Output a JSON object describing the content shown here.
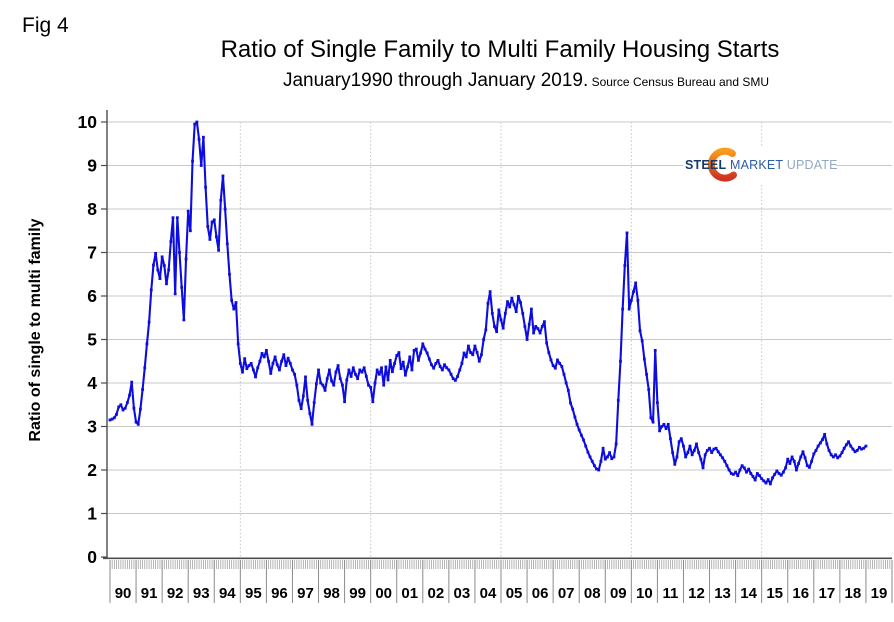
{
  "figure": {
    "fig_label": "Fig 4"
  },
  "header": {
    "title": "Ratio of Single Family to Multi Family Housing Starts",
    "subtitle": "January1990 through January 2019.",
    "source_note": " Source Census Bureau and SMU"
  },
  "logo": {
    "word1": "STEEL",
    "word2": "MARKET",
    "word3": "UPDATE",
    "colors": {
      "word1": "#153a6e",
      "word2": "#2b5ca9",
      "word3": "#93a7c6",
      "arc_top": "#f89c1b",
      "arc_bottom": "#cf3322"
    }
  },
  "chart_data": {
    "type": "line",
    "title": "Ratio of Single Family to Multi Family Housing Starts",
    "subtitle": "January1990 through January 2019.",
    "source": "Source Census Bureau and SMU",
    "xlabel": "",
    "ylabel": "Ratio of single to multi family",
    "ylim": [
      0,
      10
    ],
    "yticks": [
      0,
      1,
      2,
      3,
      4,
      5,
      6,
      7,
      8,
      9,
      10
    ],
    "x_range": [
      "Jan 1990",
      "Jan 2019"
    ],
    "frequency": "monthly",
    "x_year_labels": [
      "90",
      "91",
      "92",
      "93",
      "94",
      "95",
      "96",
      "97",
      "98",
      "99",
      "00",
      "01",
      "02",
      "03",
      "04",
      "05",
      "06",
      "07",
      "08",
      "09",
      "10",
      "11",
      "12",
      "13",
      "14",
      "15",
      "16",
      "17",
      "18",
      "19"
    ],
    "grid": {
      "horizontal": true,
      "vertical_dotted_every_years": 5,
      "legend": "none"
    },
    "colors": {
      "line": "#0d0de0",
      "grid": "#c9c9c9",
      "dotted_grid": "#c4c4c4",
      "axis": "#4d4d4d",
      "month_tick": "#a3a3a3",
      "year_separator": "#8a8a8a"
    },
    "series": [
      {
        "name": "Single family to multi family housing starts ratio",
        "start": "1990-01",
        "end": "2019-01",
        "values": [
          3.15,
          3.17,
          3.2,
          3.28,
          3.45,
          3.5,
          3.38,
          3.42,
          3.55,
          3.72,
          4.02,
          3.42,
          3.1,
          3.05,
          3.4,
          3.85,
          4.35,
          4.9,
          5.4,
          6.14,
          6.71,
          6.98,
          6.6,
          6.4,
          6.9,
          6.7,
          6.28,
          6.6,
          7.25,
          7.8,
          6.05,
          7.8,
          7.0,
          6.2,
          5.45,
          6.85,
          7.95,
          7.5,
          9.1,
          9.95,
          10.0,
          9.6,
          9.0,
          9.65,
          8.5,
          7.6,
          7.3,
          7.7,
          7.75,
          7.36,
          7.05,
          8.2,
          8.76,
          8.0,
          7.2,
          6.5,
          5.9,
          5.7,
          5.85,
          4.9,
          4.45,
          4.25,
          4.56,
          4.33,
          4.4,
          4.45,
          4.3,
          4.14,
          4.35,
          4.5,
          4.68,
          4.6,
          4.75,
          4.5,
          4.22,
          4.45,
          4.6,
          4.42,
          4.3,
          4.5,
          4.65,
          4.4,
          4.57,
          4.45,
          4.3,
          4.2,
          3.95,
          3.6,
          3.41,
          3.7,
          4.14,
          3.6,
          3.3,
          3.05,
          3.55,
          3.98,
          4.3,
          4.0,
          3.95,
          3.83,
          4.1,
          4.3,
          4.05,
          3.95,
          4.25,
          4.4,
          4.1,
          3.95,
          3.57,
          4.07,
          4.3,
          4.15,
          4.35,
          4.2,
          4.1,
          4.3,
          4.25,
          4.35,
          4.15,
          3.95,
          3.9,
          3.57,
          4.0,
          4.3,
          4.2,
          4.35,
          3.95,
          4.37,
          4.07,
          4.52,
          4.26,
          4.45,
          4.63,
          4.7,
          4.33,
          4.48,
          4.18,
          4.37,
          4.6,
          4.3,
          4.75,
          4.78,
          4.52,
          4.69,
          4.9,
          4.78,
          4.69,
          4.55,
          4.42,
          4.34,
          4.45,
          4.52,
          4.38,
          4.3,
          4.42,
          4.35,
          4.3,
          4.2,
          4.1,
          4.06,
          4.15,
          4.3,
          4.45,
          4.69,
          4.6,
          4.85,
          4.7,
          4.65,
          4.85,
          4.7,
          4.5,
          4.65,
          5.0,
          5.22,
          5.83,
          6.1,
          5.6,
          5.3,
          5.18,
          5.68,
          5.45,
          5.26,
          5.6,
          5.87,
          5.75,
          5.95,
          5.8,
          5.64,
          5.99,
          5.85,
          5.6,
          5.3,
          5.0,
          5.35,
          5.7,
          5.15,
          5.3,
          5.25,
          5.15,
          5.3,
          5.41,
          4.92,
          4.7,
          4.53,
          4.4,
          4.34,
          4.53,
          4.45,
          4.38,
          4.2,
          4.0,
          3.83,
          3.54,
          3.4,
          3.22,
          3.05,
          2.92,
          2.8,
          2.69,
          2.55,
          2.41,
          2.3,
          2.2,
          2.1,
          2.02,
          2.0,
          2.2,
          2.5,
          2.25,
          2.3,
          2.4,
          2.26,
          2.3,
          2.6,
          3.6,
          4.5,
          5.7,
          6.7,
          7.45,
          5.7,
          5.9,
          6.1,
          6.3,
          5.9,
          5.2,
          4.97,
          4.55,
          4.2,
          3.85,
          3.2,
          3.1,
          4.75,
          3.55,
          2.9,
          3.0,
          3.05,
          2.95,
          3.05,
          2.72,
          2.4,
          2.13,
          2.3,
          2.65,
          2.72,
          2.55,
          2.3,
          2.4,
          2.55,
          2.35,
          2.45,
          2.6,
          2.4,
          2.25,
          2.05,
          2.35,
          2.45,
          2.5,
          2.4,
          2.48,
          2.5,
          2.42,
          2.35,
          2.28,
          2.2,
          2.1,
          2.0,
          1.92,
          1.9,
          1.95,
          1.87,
          2.0,
          2.1,
          2.05,
          1.95,
          2.02,
          1.92,
          1.85,
          1.77,
          1.92,
          1.87,
          1.8,
          1.75,
          1.7,
          1.78,
          1.68,
          1.82,
          1.9,
          1.98,
          1.92,
          1.88,
          1.95,
          2.05,
          2.25,
          2.15,
          2.3,
          2.2,
          2.0,
          2.15,
          2.3,
          2.42,
          2.28,
          2.1,
          2.06,
          2.2,
          2.37,
          2.45,
          2.55,
          2.62,
          2.7,
          2.82,
          2.6,
          2.45,
          2.35,
          2.3,
          2.35,
          2.28,
          2.32,
          2.4,
          2.5,
          2.58,
          2.65,
          2.55,
          2.48,
          2.42,
          2.45,
          2.52,
          2.48,
          2.5,
          2.55
        ]
      }
    ]
  }
}
